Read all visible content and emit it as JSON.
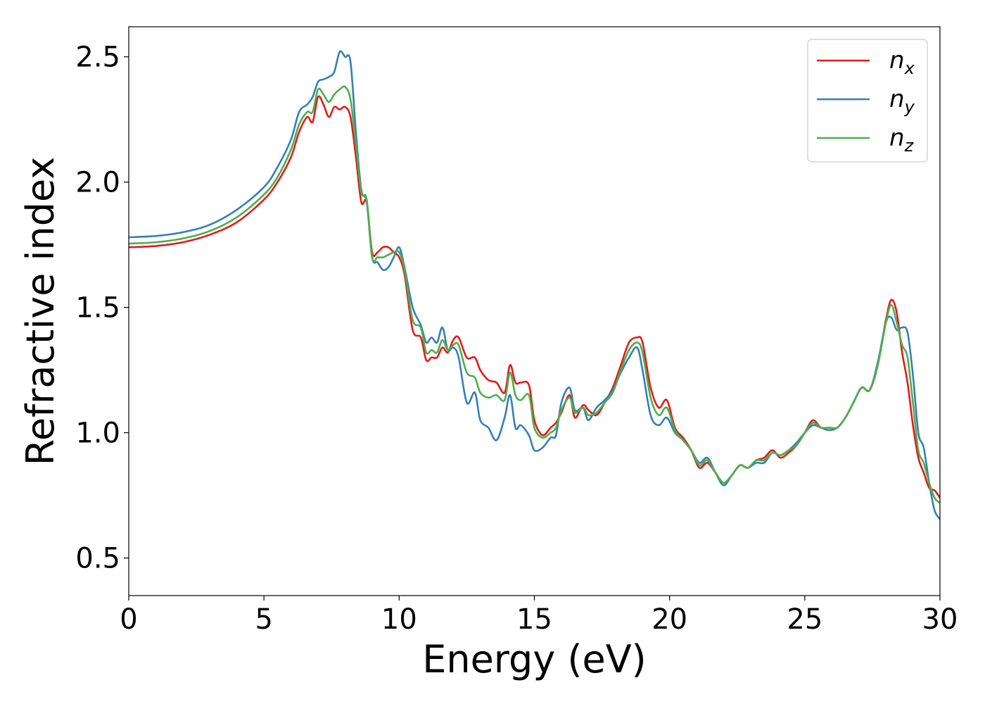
{
  "chart_data": {
    "type": "line",
    "title": "",
    "xlabel": "Energy (eV)",
    "ylabel": "Refractive index",
    "xlim": [
      0,
      30
    ],
    "ylim": [
      0.35,
      2.62
    ],
    "xticks": [
      "0",
      "5",
      "10",
      "15",
      "20",
      "25",
      "30"
    ],
    "yticks": [
      "0.5",
      "1.0",
      "1.5",
      "2.0",
      "2.5"
    ],
    "grid": false,
    "legend_position": "top-right",
    "series": [
      {
        "name": "n_x",
        "label_main": "n",
        "label_sub": "x",
        "color": "#e41a1c",
        "x": [
          0,
          1,
          2,
          3,
          4,
          5,
          5.5,
          6,
          6.3,
          6.6,
          6.8,
          7.0,
          7.2,
          7.4,
          7.6,
          7.8,
          8.0,
          8.2,
          8.4,
          8.6,
          8.8,
          9.0,
          9.2,
          9.4,
          9.6,
          9.8,
          10.0,
          10.2,
          10.5,
          10.8,
          11.0,
          11.2,
          11.4,
          11.6,
          11.8,
          12.0,
          12.2,
          12.5,
          12.8,
          13.0,
          13.3,
          13.6,
          13.9,
          14.1,
          14.3,
          14.5,
          14.8,
          15.0,
          15.3,
          15.6,
          15.8,
          16.0,
          16.3,
          16.5,
          16.8,
          17.0,
          17.3,
          17.6,
          17.9,
          18.2,
          18.5,
          18.8,
          19.0,
          19.3,
          19.6,
          19.9,
          20.2,
          20.5,
          20.8,
          21.1,
          21.4,
          21.7,
          22.0,
          22.3,
          22.6,
          22.9,
          23.2,
          23.5,
          23.8,
          24.1,
          24.4,
          24.7,
          25.0,
          25.3,
          25.6,
          25.9,
          26.2,
          26.5,
          26.8,
          27.1,
          27.4,
          27.7,
          28.0,
          28.2,
          28.4,
          28.6,
          28.8,
          29.0,
          29.2,
          29.4,
          29.6,
          29.8,
          30.0
        ],
        "y": [
          1.74,
          1.745,
          1.76,
          1.79,
          1.84,
          1.93,
          2.0,
          2.1,
          2.2,
          2.26,
          2.24,
          2.34,
          2.31,
          2.26,
          2.3,
          2.29,
          2.3,
          2.26,
          2.1,
          1.92,
          1.92,
          1.72,
          1.72,
          1.74,
          1.74,
          1.72,
          1.7,
          1.63,
          1.41,
          1.38,
          1.29,
          1.3,
          1.3,
          1.34,
          1.32,
          1.37,
          1.38,
          1.3,
          1.3,
          1.25,
          1.21,
          1.2,
          1.16,
          1.27,
          1.2,
          1.2,
          1.19,
          1.05,
          0.99,
          1.02,
          1.04,
          1.08,
          1.15,
          1.06,
          1.11,
          1.09,
          1.07,
          1.12,
          1.18,
          1.27,
          1.36,
          1.38,
          1.36,
          1.18,
          1.1,
          1.13,
          1.02,
          0.98,
          0.93,
          0.86,
          0.88,
          0.84,
          0.8,
          0.83,
          0.87,
          0.86,
          0.89,
          0.9,
          0.93,
          0.9,
          0.92,
          0.95,
          1.0,
          1.05,
          1.02,
          1.02,
          1.02,
          1.06,
          1.12,
          1.18,
          1.17,
          1.27,
          1.45,
          1.53,
          1.48,
          1.32,
          1.2,
          1.03,
          0.9,
          0.84,
          0.78,
          0.77,
          0.74
        ]
      },
      {
        "name": "n_y",
        "label_main": "n",
        "label_sub": "y",
        "color": "#377eb8",
        "x": [
          0,
          1,
          2,
          3,
          4,
          5,
          5.5,
          6,
          6.3,
          6.6,
          6.8,
          7.0,
          7.2,
          7.4,
          7.6,
          7.8,
          8.0,
          8.2,
          8.4,
          8.6,
          8.8,
          9.0,
          9.2,
          9.4,
          9.6,
          9.8,
          10.0,
          10.2,
          10.5,
          10.8,
          11.0,
          11.2,
          11.4,
          11.6,
          11.8,
          12.0,
          12.2,
          12.5,
          12.8,
          13.0,
          13.3,
          13.6,
          13.9,
          14.1,
          14.3,
          14.5,
          14.8,
          15.0,
          15.3,
          15.6,
          15.8,
          16.0,
          16.3,
          16.5,
          16.8,
          17.0,
          17.3,
          17.6,
          17.9,
          18.2,
          18.5,
          18.8,
          19.0,
          19.3,
          19.6,
          19.9,
          20.2,
          20.5,
          20.8,
          21.1,
          21.4,
          21.7,
          22.0,
          22.3,
          22.6,
          22.9,
          23.2,
          23.5,
          23.8,
          24.1,
          24.4,
          24.7,
          25.0,
          25.3,
          25.6,
          25.9,
          26.2,
          26.5,
          26.8,
          27.1,
          27.4,
          27.7,
          28.0,
          28.2,
          28.4,
          28.6,
          28.8,
          29.0,
          29.2,
          29.4,
          29.6,
          29.8,
          30.0
        ],
        "y": [
          1.78,
          1.785,
          1.8,
          1.83,
          1.89,
          1.98,
          2.06,
          2.17,
          2.28,
          2.31,
          2.34,
          2.4,
          2.41,
          2.42,
          2.44,
          2.52,
          2.5,
          2.48,
          2.2,
          1.97,
          1.92,
          1.7,
          1.68,
          1.65,
          1.66,
          1.7,
          1.74,
          1.66,
          1.5,
          1.43,
          1.36,
          1.38,
          1.36,
          1.42,
          1.33,
          1.34,
          1.3,
          1.12,
          1.16,
          1.05,
          1.02,
          0.97,
          1.06,
          1.15,
          1.02,
          1.03,
          0.99,
          0.93,
          0.94,
          0.98,
          0.99,
          1.12,
          1.18,
          1.09,
          1.1,
          1.05,
          1.1,
          1.13,
          1.17,
          1.24,
          1.3,
          1.34,
          1.25,
          1.07,
          1.03,
          1.06,
          1.0,
          0.97,
          0.93,
          0.88,
          0.9,
          0.84,
          0.79,
          0.83,
          0.87,
          0.86,
          0.88,
          0.88,
          0.92,
          0.91,
          0.93,
          0.96,
          1.0,
          1.03,
          1.02,
          1.01,
          1.02,
          1.06,
          1.12,
          1.18,
          1.17,
          1.28,
          1.44,
          1.46,
          1.41,
          1.42,
          1.4,
          1.23,
          1.0,
          0.94,
          0.8,
          0.69,
          0.655
        ]
      },
      {
        "name": "n_z",
        "label_main": "n",
        "label_sub": "z",
        "color": "#4daf4a",
        "x": [
          0,
          1,
          2,
          3,
          4,
          5,
          5.5,
          6,
          6.3,
          6.6,
          6.8,
          7.0,
          7.2,
          7.4,
          7.6,
          7.8,
          8.0,
          8.2,
          8.4,
          8.6,
          8.8,
          9.0,
          9.2,
          9.4,
          9.6,
          9.8,
          10.0,
          10.2,
          10.5,
          10.8,
          11.0,
          11.2,
          11.4,
          11.6,
          11.8,
          12.0,
          12.2,
          12.5,
          12.8,
          13.0,
          13.3,
          13.6,
          13.9,
          14.1,
          14.3,
          14.5,
          14.8,
          15.0,
          15.3,
          15.6,
          15.8,
          16.0,
          16.3,
          16.5,
          16.8,
          17.0,
          17.3,
          17.6,
          17.9,
          18.2,
          18.5,
          18.8,
          19.0,
          19.3,
          19.6,
          19.9,
          20.2,
          20.5,
          20.8,
          21.1,
          21.4,
          21.7,
          22.0,
          22.3,
          22.6,
          22.9,
          23.2,
          23.5,
          23.8,
          24.1,
          24.4,
          24.7,
          25.0,
          25.3,
          25.6,
          25.9,
          26.2,
          26.5,
          26.8,
          27.1,
          27.4,
          27.7,
          28.0,
          28.2,
          28.4,
          28.6,
          28.8,
          29.0,
          29.2,
          29.4,
          29.6,
          29.8,
          30.0
        ],
        "y": [
          1.755,
          1.76,
          1.775,
          1.805,
          1.86,
          1.95,
          2.02,
          2.13,
          2.23,
          2.28,
          2.28,
          2.37,
          2.35,
          2.32,
          2.35,
          2.37,
          2.38,
          2.33,
          2.15,
          1.96,
          1.93,
          1.7,
          1.7,
          1.7,
          1.71,
          1.72,
          1.72,
          1.65,
          1.45,
          1.42,
          1.32,
          1.33,
          1.32,
          1.37,
          1.33,
          1.35,
          1.35,
          1.24,
          1.22,
          1.16,
          1.14,
          1.15,
          1.13,
          1.24,
          1.15,
          1.13,
          1.15,
          1.02,
          0.98,
          1.0,
          1.02,
          1.09,
          1.14,
          1.08,
          1.1,
          1.07,
          1.08,
          1.12,
          1.16,
          1.25,
          1.33,
          1.36,
          1.32,
          1.14,
          1.07,
          1.1,
          1.01,
          0.97,
          0.93,
          0.87,
          0.89,
          0.84,
          0.8,
          0.83,
          0.87,
          0.86,
          0.89,
          0.89,
          0.92,
          0.91,
          0.93,
          0.95,
          1.0,
          1.04,
          1.02,
          1.02,
          1.02,
          1.06,
          1.12,
          1.18,
          1.17,
          1.27,
          1.44,
          1.51,
          1.44,
          1.35,
          1.3,
          1.12,
          0.93,
          0.88,
          0.8,
          0.74,
          0.72
        ]
      }
    ]
  }
}
